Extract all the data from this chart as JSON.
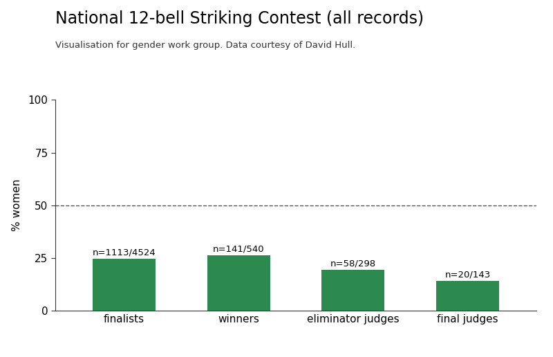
{
  "title": "National 12-bell Striking Contest (all records)",
  "subtitle": "Visualisation for gender work group. Data courtesy of David Hull.",
  "categories": [
    "finalists",
    "winners",
    "eliminator judges",
    "final judges"
  ],
  "values": [
    24.6064,
    26.1111,
    19.4631,
    13.986
  ],
  "annotations": [
    "n=1113/4524",
    "n=141/540",
    "n=58/298",
    "n=20/143"
  ],
  "bar_color": "#2d8a4e",
  "ylabel": "% women",
  "ylim": [
    0,
    100
  ],
  "yticks": [
    0,
    25,
    50,
    75,
    100
  ],
  "dashed_line_y": 50,
  "background_color": "#ffffff",
  "title_fontsize": 17,
  "subtitle_fontsize": 9.5,
  "ylabel_fontsize": 11,
  "tick_fontsize": 11,
  "annotation_fontsize": 9.5
}
